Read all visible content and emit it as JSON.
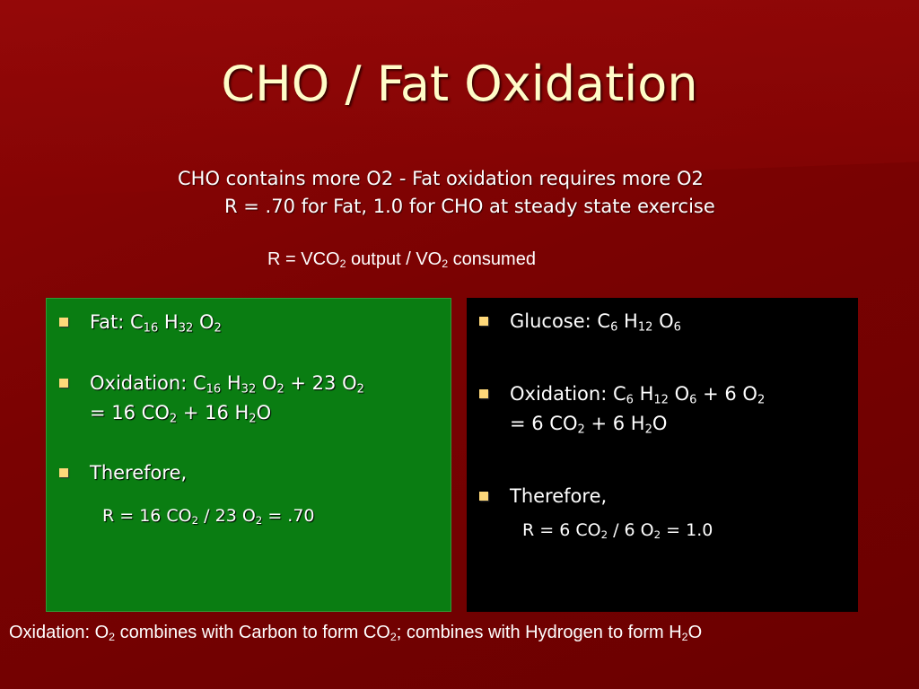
{
  "title": "CHO / Fat Oxidation",
  "subtitle_1": "CHO contains more O2 - Fat oxidation requires more O2",
  "subtitle_2": "R = .70 for Fat, 1.0 for CHO at steady state exercise",
  "r_definition": {
    "prefix": "R = VCO",
    "sub_1": "2",
    "middle": " output / VO",
    "sub_2": "2",
    "suffix": " consumed"
  },
  "fat_panel": {
    "formula": {
      "label": "Fat: C",
      "c_sub": "16",
      "h": " H",
      "h_sub": "32",
      "o": " O",
      "o_sub": "2"
    },
    "oxidation": {
      "label": "Oxidation: C",
      "c_sub": "16",
      "h": " H",
      "h_sub": "32",
      "o": " O",
      "o_sub": "2",
      "plus": " + 23 O",
      "plus_sub": "2",
      "line2_a": "= 16 CO",
      "line2_a_sub": "2",
      "line2_b": " + 16 H",
      "line2_b_sub": "2",
      "line2_c": "O"
    },
    "therefore": "Therefore,",
    "result": {
      "a": "R = 16 CO",
      "a_sub": "2",
      "b": " / 23 O",
      "b_sub": "2",
      "c": " = .70"
    }
  },
  "glucose_panel": {
    "formula": {
      "label": "Glucose: C",
      "c_sub": "6",
      "h": " H",
      "h_sub": "12",
      "o": " O",
      "o_sub": "6"
    },
    "oxidation": {
      "label": "Oxidation: C",
      "c_sub": "6",
      "h": " H",
      "h_sub": "12",
      "o": " O",
      "o_sub": "6",
      "plus": " + 6 O",
      "plus_sub": "2",
      "line2_a": "= 6 CO",
      "line2_a_sub": "2",
      "line2_b": " + 6 H",
      "line2_b_sub": "2",
      "line2_c": "O"
    },
    "therefore": "Therefore,",
    "result": {
      "a": "R = 6 CO",
      "a_sub": "2",
      "b": " / 6 O",
      "b_sub": "2",
      "c": " = 1.0"
    }
  },
  "footer": {
    "a": "Oxidation: O",
    "a_sub": "2",
    "b": " combines with Carbon to form CO",
    "b_sub": "2",
    "c": "; combines with Hydrogen to form H",
    "c_sub": "2",
    "d": "O"
  },
  "colors": {
    "background": "#7a0202",
    "title": "#fffcc8",
    "green_panel": "#0a7d12",
    "black_panel": "#000000",
    "bullet": "#ffd97a"
  }
}
